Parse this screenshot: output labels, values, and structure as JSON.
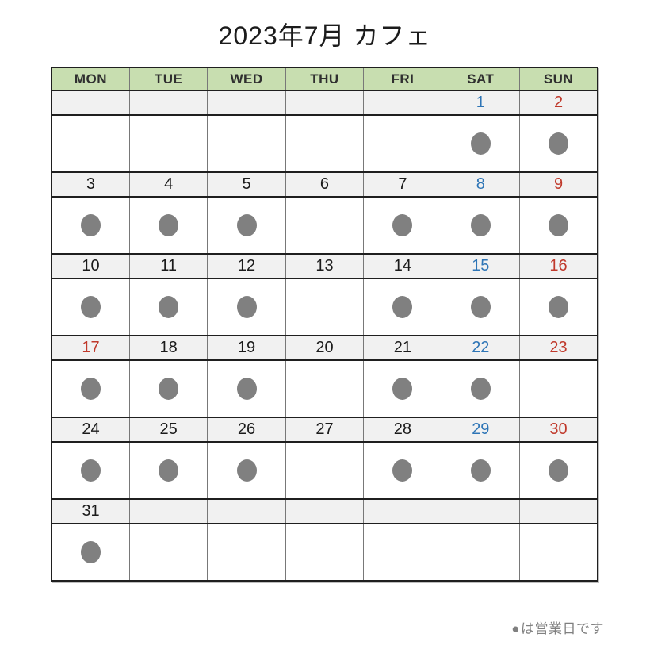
{
  "title": "2023年7月 カフェ",
  "weekdays": [
    "MON",
    "TUE",
    "WED",
    "THU",
    "FRI",
    "SAT",
    "SUN"
  ],
  "legend": {
    "icon": "●",
    "text": "は営業日です"
  },
  "colors": {
    "header_bg": "#c8deb0",
    "header_text": "#2f2f2f",
    "date_row_bg": "#f1f1f1",
    "grid_horizontal": "#1f1f1f",
    "grid_vertical": "#787878",
    "title_text": "#1b1b1b",
    "dot": "#808080",
    "legend_text": "#808080",
    "black": "#1b1b1b",
    "blue": "#2e75b6",
    "red": "#c0392b"
  },
  "weeks": [
    [
      {
        "day": "",
        "dot": false,
        "color": "black"
      },
      {
        "day": "",
        "dot": false,
        "color": "black"
      },
      {
        "day": "",
        "dot": false,
        "color": "black"
      },
      {
        "day": "",
        "dot": false,
        "color": "black"
      },
      {
        "day": "",
        "dot": false,
        "color": "black"
      },
      {
        "day": "1",
        "dot": true,
        "color": "blue"
      },
      {
        "day": "2",
        "dot": true,
        "color": "red"
      }
    ],
    [
      {
        "day": "3",
        "dot": true,
        "color": "black"
      },
      {
        "day": "4",
        "dot": true,
        "color": "black"
      },
      {
        "day": "5",
        "dot": true,
        "color": "black"
      },
      {
        "day": "6",
        "dot": false,
        "color": "black"
      },
      {
        "day": "7",
        "dot": true,
        "color": "black"
      },
      {
        "day": "8",
        "dot": true,
        "color": "blue"
      },
      {
        "day": "9",
        "dot": true,
        "color": "red"
      }
    ],
    [
      {
        "day": "10",
        "dot": true,
        "color": "black"
      },
      {
        "day": "11",
        "dot": true,
        "color": "black"
      },
      {
        "day": "12",
        "dot": true,
        "color": "black"
      },
      {
        "day": "13",
        "dot": false,
        "color": "black"
      },
      {
        "day": "14",
        "dot": true,
        "color": "black"
      },
      {
        "day": "15",
        "dot": true,
        "color": "blue"
      },
      {
        "day": "16",
        "dot": true,
        "color": "red"
      }
    ],
    [
      {
        "day": "17",
        "dot": true,
        "color": "red"
      },
      {
        "day": "18",
        "dot": true,
        "color": "black"
      },
      {
        "day": "19",
        "dot": true,
        "color": "black"
      },
      {
        "day": "20",
        "dot": false,
        "color": "black"
      },
      {
        "day": "21",
        "dot": true,
        "color": "black"
      },
      {
        "day": "22",
        "dot": true,
        "color": "blue"
      },
      {
        "day": "23",
        "dot": false,
        "color": "red"
      }
    ],
    [
      {
        "day": "24",
        "dot": true,
        "color": "black"
      },
      {
        "day": "25",
        "dot": true,
        "color": "black"
      },
      {
        "day": "26",
        "dot": true,
        "color": "black"
      },
      {
        "day": "27",
        "dot": false,
        "color": "black"
      },
      {
        "day": "28",
        "dot": true,
        "color": "black"
      },
      {
        "day": "29",
        "dot": true,
        "color": "blue"
      },
      {
        "day": "30",
        "dot": true,
        "color": "red"
      }
    ],
    [
      {
        "day": "31",
        "dot": true,
        "color": "black"
      },
      {
        "day": "",
        "dot": false,
        "color": "black"
      },
      {
        "day": "",
        "dot": false,
        "color": "black"
      },
      {
        "day": "",
        "dot": false,
        "color": "black"
      },
      {
        "day": "",
        "dot": false,
        "color": "black"
      },
      {
        "day": "",
        "dot": false,
        "color": "black"
      },
      {
        "day": "",
        "dot": false,
        "color": "black"
      }
    ]
  ]
}
